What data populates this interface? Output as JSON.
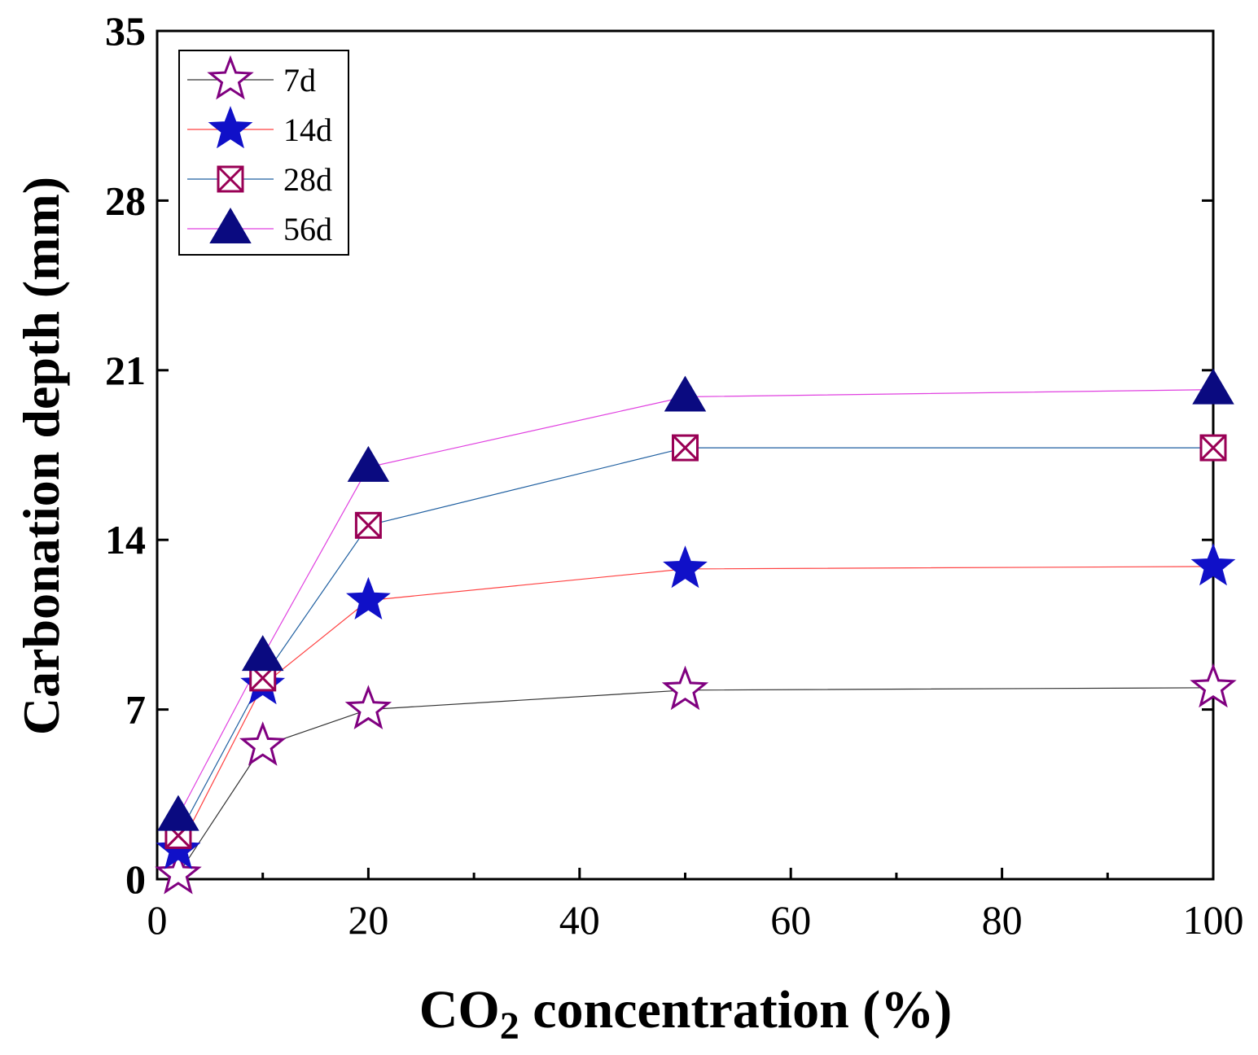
{
  "chart_data": {
    "type": "line",
    "xlabel": {
      "main": "CO",
      "sub": "2",
      "rest": " concentration (%)"
    },
    "ylabel": "Carbonation depth (mm)",
    "xlim": [
      0,
      100
    ],
    "ylim": [
      0,
      35
    ],
    "xticks": [
      "0",
      "20",
      "40",
      "60",
      "80",
      "100"
    ],
    "yticks": [
      "0",
      "7",
      "14",
      "21",
      "28",
      "35"
    ],
    "x": [
      2,
      10,
      20,
      50,
      100
    ],
    "legend_position": "top-left",
    "grid": false,
    "series": [
      {
        "name": "7d",
        "values": [
          0.2,
          5.5,
          7.0,
          7.8,
          7.9
        ],
        "marker": "star-open",
        "marker_color": "#800080",
        "line_color": "#333333"
      },
      {
        "name": "14d",
        "values": [
          1.2,
          8.0,
          11.5,
          12.8,
          12.9
        ],
        "marker": "star-filled",
        "marker_color": "#1010C8",
        "line_color": "#FF4040"
      },
      {
        "name": "28d",
        "values": [
          1.8,
          8.3,
          14.6,
          17.8,
          17.8
        ],
        "marker": "square-x",
        "marker_color": "#990055",
        "line_color": "#1F5FA0"
      },
      {
        "name": "56d",
        "values": [
          2.6,
          9.2,
          17.0,
          19.9,
          20.2
        ],
        "marker": "triangle",
        "marker_color": "#0A0A80",
        "line_color": "#E040E0"
      }
    ]
  }
}
